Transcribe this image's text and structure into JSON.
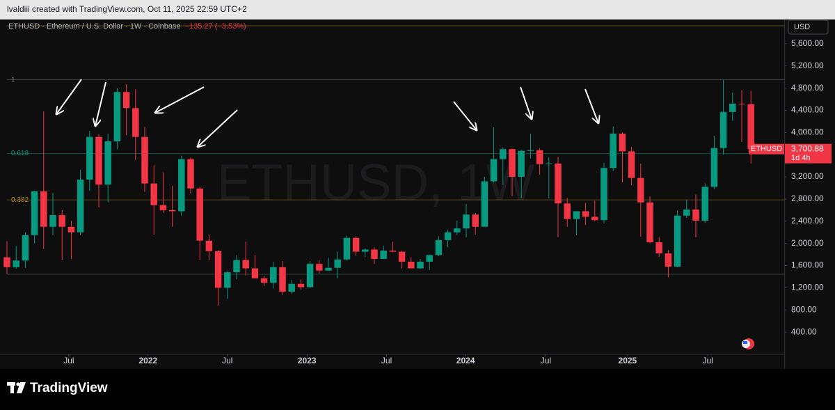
{
  "header": {
    "text": "lvaldiii created with TradingView.com, Oct 11, 2025 22:59 UTC+2"
  },
  "footer": {
    "brand": "TradingView"
  },
  "chart_data": {
    "type": "candlestick",
    "title": "ETHUSD · Ethereum / U.S. Dollar · 1W · Coinbase",
    "change": "−135.27 (−3.53%)",
    "watermark": "ETHUSD, 1W",
    "currency": "USD",
    "symbol_tag": "ETHUSD",
    "last_price_label": "3,700.88",
    "countdown": "1d 4h",
    "up_color": "#089981",
    "down_color": "#f23645",
    "grid": false,
    "x": [
      0,
      3,
      6,
      9,
      12,
      15,
      18,
      21,
      24,
      27,
      30,
      33,
      36,
      39,
      42,
      45,
      48,
      51,
      54,
      57,
      60,
      63,
      66,
      69,
      72,
      75,
      78,
      81,
      84,
      87,
      90,
      93,
      96,
      99,
      102,
      105,
      108,
      111,
      114,
      117,
      120,
      123,
      126,
      129,
      132,
      135,
      138,
      141,
      144,
      147,
      150,
      153,
      156,
      159,
      162,
      165,
      168,
      171,
      174,
      177,
      180,
      183,
      186,
      189,
      192,
      195,
      198,
      201,
      204,
      207,
      210,
      213,
      216,
      219,
      222,
      225,
      228,
      231,
      234,
      237,
      240,
      243
    ],
    "open": [
      1750,
      1570,
      1690,
      2150,
      2940,
      2300,
      2510,
      2300,
      2200,
      3150,
      3920,
      3060,
      3840,
      4730,
      4440,
      3920,
      3080,
      2690,
      2600,
      2580,
      3520,
      2990,
      2050,
      1860,
      1200,
      1480,
      1700,
      1550,
      1370,
      1290,
      1570,
      1130,
      1270,
      1210,
      1630,
      1510,
      1560,
      1710,
      2100,
      1850,
      1890,
      1720,
      1870,
      1850,
      1670,
      1550,
      1670,
      1790,
      2060,
      2200,
      2270,
      2520,
      2300,
      3120,
      3520,
      3700,
      3200,
      3670,
      3680,
      3430,
      3440,
      2720,
      2440,
      2580,
      2480,
      2420,
      3360,
      3980,
      3660,
      3180,
      2740,
      2020,
      1820,
      1580,
      2500,
      2610,
      2410,
      3020,
      3720,
      4370,
      4520,
      4510
    ],
    "high": [
      2040,
      1950,
      2200,
      2950,
      4380,
      2910,
      2600,
      2410,
      3330,
      4030,
      3970,
      3980,
      4800,
      4870,
      4780,
      4100,
      3410,
      3280,
      3040,
      3580,
      3550,
      3020,
      2160,
      1880,
      1500,
      1790,
      2030,
      1790,
      1410,
      1670,
      1680,
      1340,
      1350,
      1680,
      1700,
      1740,
      1850,
      2140,
      2130,
      1910,
      1930,
      1960,
      2030,
      1870,
      1750,
      1720,
      1800,
      2130,
      2250,
      2410,
      2710,
      2550,
      3200,
      4090,
      3730,
      3720,
      3690,
      3980,
      3720,
      3550,
      3560,
      2820,
      2560,
      2730,
      2770,
      3450,
      4110,
      4000,
      3740,
      3440,
      2850,
      2110,
      1880,
      2590,
      2790,
      2880,
      3080,
      3940,
      4950,
      4720,
      4760,
      4750
    ],
    "low": [
      1450,
      1540,
      1560,
      2000,
      1900,
      2150,
      1700,
      1720,
      2150,
      2950,
      2650,
      2740,
      3700,
      3950,
      3500,
      2930,
      2160,
      2550,
      2300,
      2500,
      2900,
      1700,
      1700,
      880,
      1000,
      1350,
      1420,
      1370,
      1230,
      1190,
      1070,
      1090,
      1160,
      1200,
      1460,
      1500,
      1370,
      1690,
      1780,
      1750,
      1630,
      1720,
      1840,
      1550,
      1550,
      1540,
      1520,
      1770,
      1930,
      2150,
      2110,
      2160,
      2300,
      3100,
      3060,
      2850,
      2820,
      3530,
      3240,
      2810,
      2110,
      2300,
      2150,
      2330,
      2400,
      2360,
      3300,
      3100,
      3050,
      2120,
      2000,
      1760,
      1390,
      1570,
      2460,
      2110,
      2370,
      2980,
      3600,
      4210,
      3830,
      3440
    ],
    "close": [
      1570,
      1690,
      2150,
      2940,
      2300,
      2510,
      2300,
      2200,
      3150,
      3920,
      3060,
      3840,
      4730,
      4440,
      3920,
      3080,
      2690,
      2600,
      2580,
      3520,
      2990,
      2050,
      1860,
      1200,
      1480,
      1700,
      1550,
      1370,
      1290,
      1570,
      1130,
      1270,
      1210,
      1630,
      1510,
      1560,
      1710,
      2100,
      1850,
      1890,
      1720,
      1870,
      1850,
      1670,
      1550,
      1670,
      1790,
      2060,
      2200,
      2270,
      2520,
      2300,
      3120,
      3520,
      3700,
      3200,
      3670,
      3680,
      3430,
      3440,
      2720,
      2440,
      2580,
      2480,
      2420,
      3360,
      3980,
      3660,
      3180,
      2740,
      2020,
      1820,
      1580,
      2500,
      2610,
      2410,
      3020,
      3720,
      4370,
      4520,
      4510,
      3700.88
    ],
    "xlim": [
      0,
      254
    ],
    "ylim": [
      0,
      6000
    ],
    "xticks": [
      {
        "value": 20.2,
        "label": "Jul"
      },
      {
        "value": 46.1,
        "label": "2022"
      },
      {
        "value": 72,
        "label": "Jul"
      },
      {
        "value": 98,
        "label": "2023"
      },
      {
        "value": 124,
        "label": "Jul"
      },
      {
        "value": 149.8,
        "label": "2024"
      },
      {
        "value": 176,
        "label": "Jul"
      },
      {
        "value": 202.7,
        "label": "2025"
      },
      {
        "value": 228.9,
        "label": "Jul"
      }
    ],
    "yticks": [
      {
        "value": 400,
        "label": "400.00"
      },
      {
        "value": 800,
        "label": "800.00"
      },
      {
        "value": 1200,
        "label": "1,200.00"
      },
      {
        "value": 1600,
        "label": "1,600.00"
      },
      {
        "value": 2000,
        "label": "2,000.00"
      },
      {
        "value": 2400,
        "label": "2,400.00"
      },
      {
        "value": 2800,
        "label": "2,800.00"
      },
      {
        "value": 3200,
        "label": "3,200.00"
      },
      {
        "value": 3600,
        "label": "3,600.00"
      },
      {
        "value": 4000,
        "label": "4,000.00"
      },
      {
        "value": 4400,
        "label": "4,400.00"
      },
      {
        "value": 4800,
        "label": "4,800.00"
      },
      {
        "value": 5200,
        "label": "5,200.00"
      },
      {
        "value": 5600,
        "label": "5,600.00"
      }
    ],
    "fib_levels": [
      {
        "label": "1",
        "price": 4950,
        "color": "#787b86"
      },
      {
        "label": "0.618",
        "price": 3620,
        "color": "#089981"
      },
      {
        "label": "0.382",
        "price": 2785,
        "color": "#b8862b"
      }
    ],
    "hlines": [
      {
        "price": 5924,
        "color": "#b8862b"
      },
      {
        "price": 1443,
        "color": "#4a6b5c"
      }
    ]
  }
}
